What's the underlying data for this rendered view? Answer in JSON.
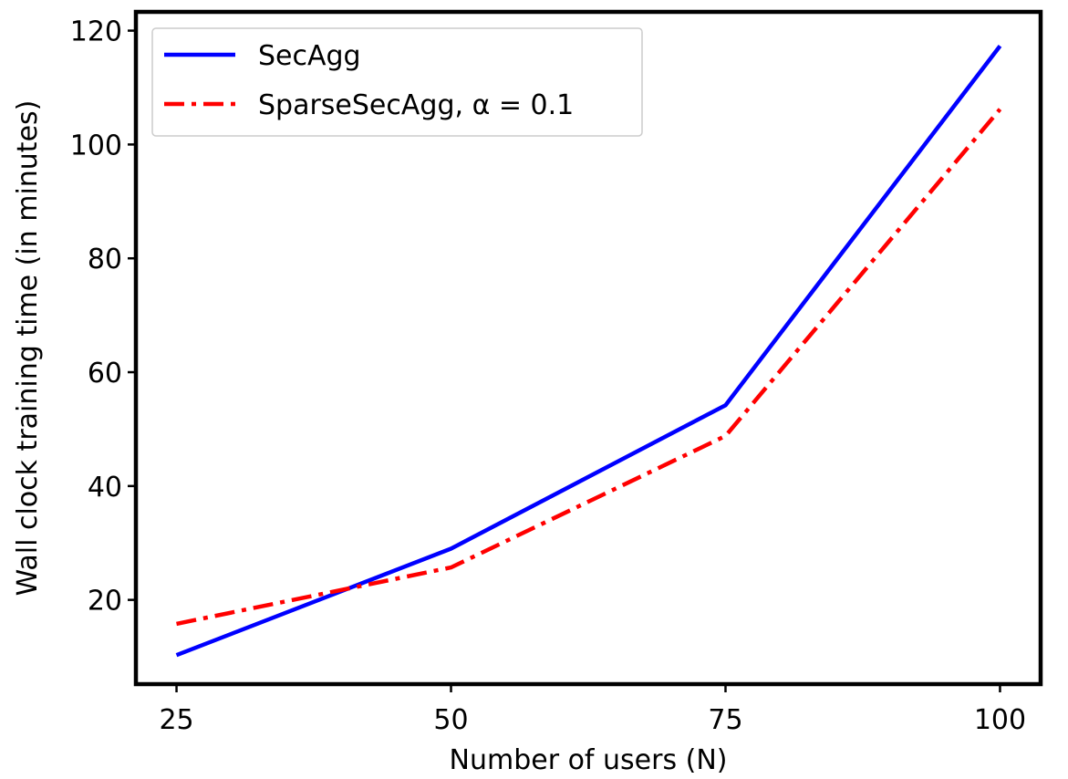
{
  "chart_data": {
    "type": "line",
    "title": "",
    "xlabel": "Number of users (N)",
    "ylabel": "Wall clock training time (in minutes)",
    "x": [
      25,
      50,
      75,
      100
    ],
    "xlim": [
      21.3,
      103.7
    ],
    "ylim": [
      5.2,
      123.3
    ],
    "xticks": [
      25,
      50,
      75,
      100
    ],
    "yticks": [
      20,
      40,
      60,
      80,
      100,
      120
    ],
    "grid": false,
    "legend_position": "top-left",
    "series": [
      {
        "name": "SecAgg",
        "values": [
          10.3,
          29.0,
          54.2,
          117.3
        ],
        "color": "#0000ff",
        "style": "solid"
      },
      {
        "name": "SparseSecAgg, α = 0.1",
        "values": [
          15.8,
          25.7,
          48.8,
          106.2
        ],
        "color": "#ff0000",
        "style": "dashdot"
      }
    ]
  }
}
